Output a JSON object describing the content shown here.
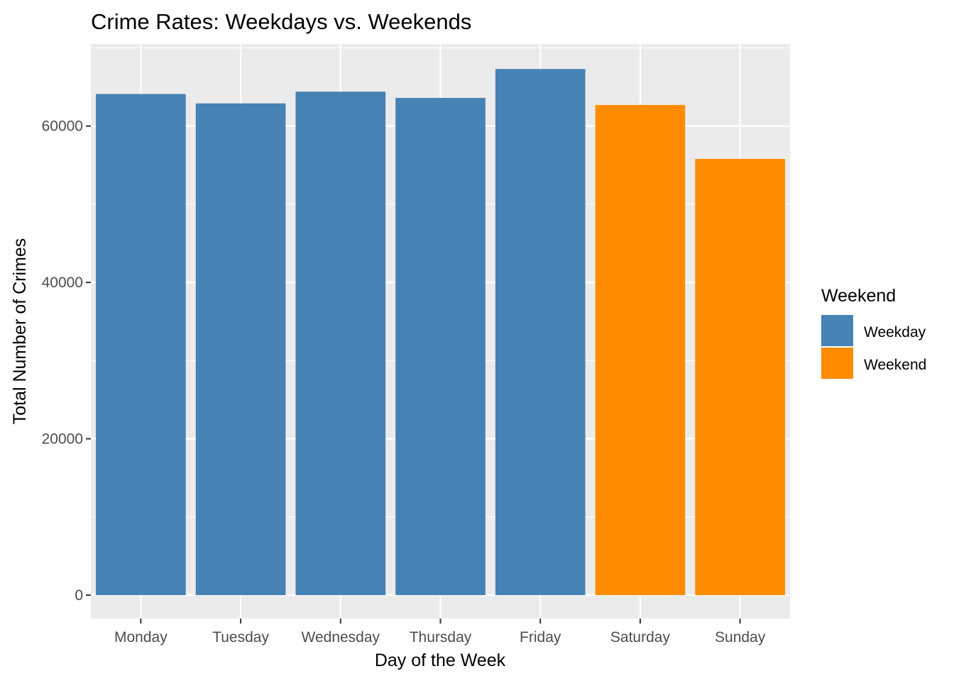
{
  "chart_data": {
    "type": "bar",
    "title": "Crime Rates: Weekdays vs. Weekends",
    "xlabel": "Day of the Week",
    "ylabel": "Total Number of Crimes",
    "categories": [
      "Monday",
      "Tuesday",
      "Wednesday",
      "Thursday",
      "Friday",
      "Saturday",
      "Sunday"
    ],
    "values": [
      64100,
      62900,
      64400,
      63600,
      67300,
      62700,
      55800
    ],
    "groups": [
      "Weekday",
      "Weekday",
      "Weekday",
      "Weekday",
      "Weekday",
      "Weekend",
      "Weekend"
    ],
    "ylim": [
      -3000,
      70500
    ],
    "yticks": [
      0,
      20000,
      40000,
      60000
    ],
    "ytick_labels": [
      "0",
      "20000",
      "40000",
      "60000"
    ],
    "grid": true,
    "legend": {
      "title": "Weekend",
      "position": "right",
      "entries": [
        {
          "label": "Weekday",
          "color": "#4682B4"
        },
        {
          "label": "Weekend",
          "color": "#FF8C00"
        }
      ]
    },
    "colors": {
      "Weekday": "#4682B4",
      "Weekend": "#FF8C00",
      "panel_background": "#EBEBEB",
      "grid": "#FFFFFF"
    }
  }
}
